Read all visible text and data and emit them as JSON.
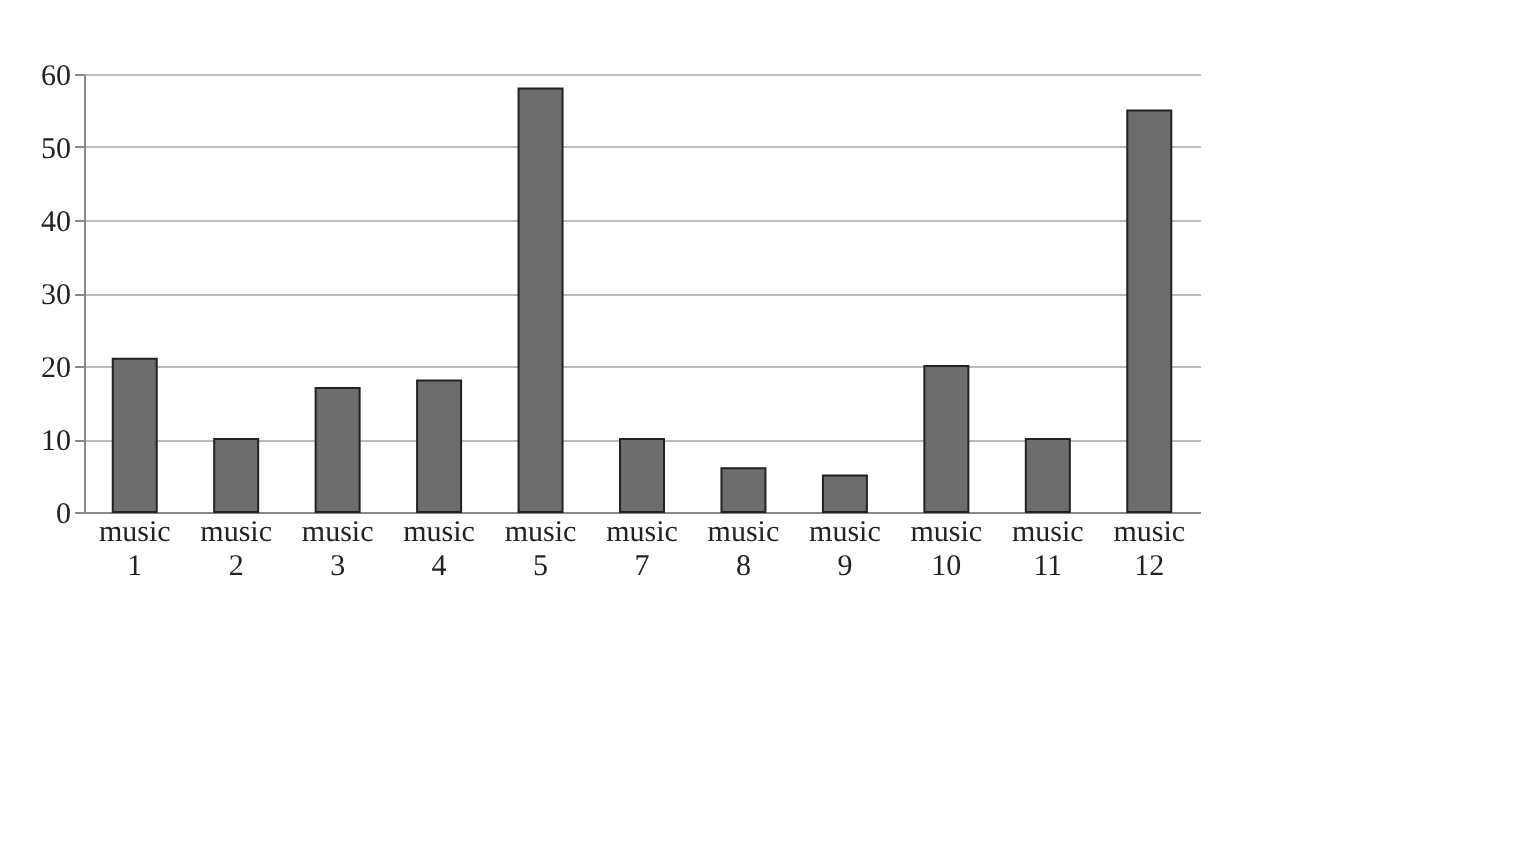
{
  "chart_data": {
    "type": "bar",
    "categories": [
      "music 1",
      "music 2",
      "music 3",
      "music 4",
      "music 5",
      "music 7",
      "music 8",
      "music 9",
      "music 10",
      "music 11",
      "music 12"
    ],
    "values": [
      21,
      10,
      17,
      18,
      58,
      10,
      6,
      5,
      20,
      10,
      55
    ],
    "color": "#6d6d6d",
    "ylim": [
      0,
      60
    ],
    "yticks": [
      0,
      10,
      20,
      30,
      40,
      50,
      60
    ],
    "grid": "y"
  }
}
